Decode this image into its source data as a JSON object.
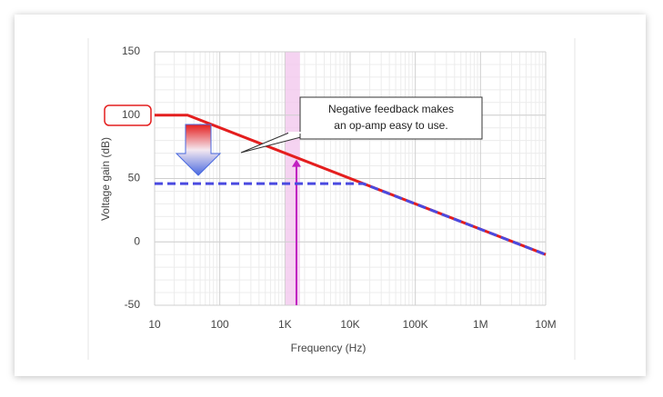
{
  "chart_data": {
    "type": "line",
    "xlabel": "Frequency (Hz)",
    "ylabel": "Voltage gain (dB)",
    "xscale": "log",
    "grid": true,
    "xlim": [
      10,
      10000000
    ],
    "xticks": [
      {
        "value": 10,
        "label": "10"
      },
      {
        "value": 100,
        "label": "100"
      },
      {
        "value": 1000,
        "label": "1K"
      },
      {
        "value": 10000,
        "label": "10K"
      },
      {
        "value": 100000,
        "label": "100K"
      },
      {
        "value": 1000000,
        "label": "1M"
      },
      {
        "value": 10000000,
        "label": "10M"
      }
    ],
    "ylim": [
      -50,
      150
    ],
    "yticks": [
      150,
      100,
      50,
      0,
      -50
    ],
    "series": [
      {
        "color": "#e41e1e",
        "x": [
          10,
          32,
          10000000
        ],
        "values": [
          100,
          100,
          -10
        ]
      },
      {
        "color": "#4a4ae0",
        "dash": true,
        "x": [
          10,
          15800,
          10000000
        ],
        "values": [
          46,
          46,
          -10
        ]
      }
    ],
    "highlight_band": {
      "color": "#f2c8ee",
      "x": [
        1000,
        1700
      ]
    },
    "marker_arrow": {
      "color": "#c020c0",
      "x": 1500,
      "y": [
        -50,
        65
      ]
    },
    "annotation": [
      "Negative feedback makes",
      "an op-amp easy to use."
    ]
  }
}
